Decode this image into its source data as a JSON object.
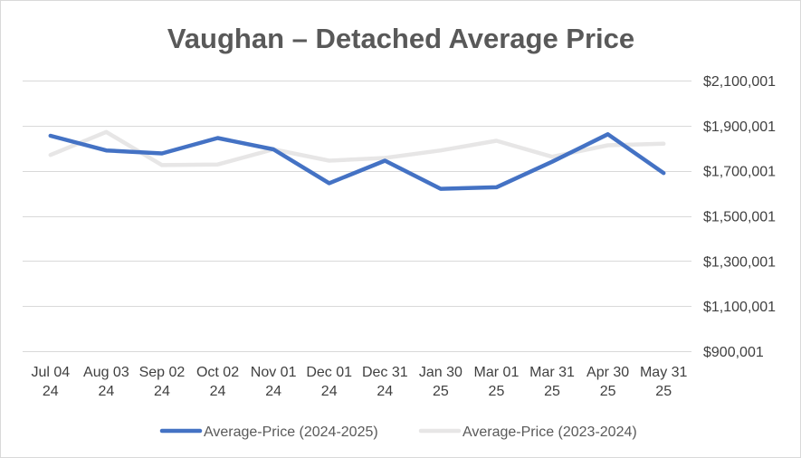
{
  "chart_data": {
    "type": "line",
    "title": "Vaughan – Detached Average Price",
    "categories": [
      [
        "Jul 04",
        "24"
      ],
      [
        "Aug 03",
        "24"
      ],
      [
        "Sep 02",
        "24"
      ],
      [
        "Oct 02",
        "24"
      ],
      [
        "Nov 01",
        "24"
      ],
      [
        "Dec 01",
        "24"
      ],
      [
        "Dec 31",
        "24"
      ],
      [
        "Jan 30",
        "25"
      ],
      [
        "Mar 01",
        "25"
      ],
      [
        "Mar 31",
        "25"
      ],
      [
        "Apr 30",
        "25"
      ],
      [
        "May 31",
        "25"
      ]
    ],
    "y_axis": {
      "position": "right",
      "min": 900001,
      "max": 2100001,
      "step": 200000,
      "tick_labels": [
        "$2,100,001",
        "$1,900,001",
        "$1,700,001",
        "$1,500,001",
        "$1,300,001",
        "$1,100,001",
        "$900,001"
      ]
    },
    "grid": true,
    "legend_position": "bottom",
    "series": [
      {
        "name": "Average-Price (2024-2025)",
        "color": "#4472c4",
        "values": [
          1855000,
          1790000,
          1777000,
          1845000,
          1795000,
          1645000,
          1745000,
          1620000,
          1627000,
          1740000,
          1862000,
          1690000
        ]
      },
      {
        "name": "Average-Price (2023-2024)",
        "color": "#e7e6e6",
        "values": [
          1770000,
          1872000,
          1725000,
          1728000,
          1795000,
          1745000,
          1757000,
          1790000,
          1833000,
          1762000,
          1813000,
          1820000
        ]
      }
    ]
  }
}
